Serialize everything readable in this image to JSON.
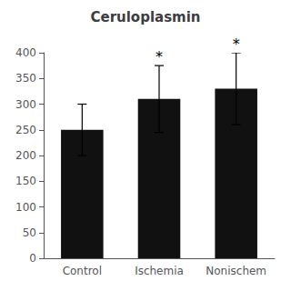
{
  "chart_data": {
    "type": "bar",
    "title": "Ceruloplasmin",
    "categories": [
      "Control",
      "Ischemia",
      "Nonischem"
    ],
    "values": [
      250,
      310,
      330
    ],
    "errors": [
      50,
      65,
      70
    ],
    "color": "#111111",
    "ylim": [
      0,
      400
    ],
    "yticks": [
      0,
      50,
      100,
      150,
      200,
      250,
      300,
      350,
      400
    ],
    "grid": false,
    "annotations": [
      {
        "category": "Ischemia",
        "text": "*"
      },
      {
        "category": "Nonischem",
        "text": "*"
      }
    ]
  }
}
